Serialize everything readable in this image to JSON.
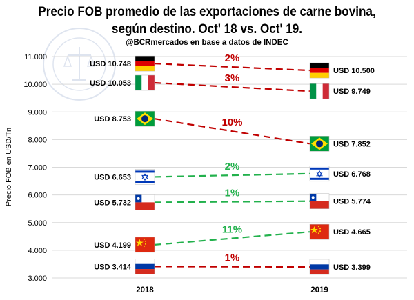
{
  "chart_data": {
    "type": "line",
    "title_line1": "Precio FOB promedio de las exportaciones de carne bovina,",
    "title_line2": "según destino. Oct' 18 vs. Oct' 19.",
    "subtitle": "@BCRmercados en base a datos de INDEC",
    "ylabel": "Precio FOB en USD/Tn",
    "ylim": [
      2800,
      11200
    ],
    "yticks": [
      "3.000",
      "4.000",
      "5.000",
      "6.000",
      "7.000",
      "8.000",
      "9.000",
      "10.000",
      "11.000"
    ],
    "ytick_values": [
      3000,
      4000,
      5000,
      6000,
      7000,
      8000,
      9000,
      10000,
      11000
    ],
    "categories": [
      "2018",
      "2019"
    ],
    "series": [
      {
        "flag": "germany",
        "values": [
          10748,
          10500
        ],
        "labels": [
          "USD 10.748",
          "USD 10.500"
        ],
        "change": "2%",
        "color": "#c00000"
      },
      {
        "flag": "italy",
        "values": [
          10053,
          9749
        ],
        "labels": [
          "USD 10.053",
          "USD 9.749"
        ],
        "change": "3%",
        "color": "#c00000"
      },
      {
        "flag": "brazil",
        "values": [
          8753,
          7852
        ],
        "labels": [
          "USD 8.753",
          "USD 7.852"
        ],
        "change": "10%",
        "color": "#c00000"
      },
      {
        "flag": "israel",
        "values": [
          6653,
          6768
        ],
        "labels": [
          "USD 6.653",
          "USD 6.768"
        ],
        "change": "2%",
        "color": "#22b14c"
      },
      {
        "flag": "chile",
        "values": [
          5732,
          5774
        ],
        "labels": [
          "USD 5.732",
          "USD 5.774"
        ],
        "change": "1%",
        "color": "#22b14c"
      },
      {
        "flag": "china",
        "values": [
          4199,
          4665
        ],
        "labels": [
          "USD 4.199",
          "USD 4.665"
        ],
        "change": "11%",
        "color": "#22b14c"
      },
      {
        "flag": "russia",
        "values": [
          3414,
          3399
        ],
        "labels": [
          "USD 3.414",
          "USD 3.399"
        ],
        "change": "1%",
        "color": "#c00000"
      }
    ]
  },
  "watermark": {
    "text": "BOLSA DE COMERCIO DE ROSARIO"
  }
}
